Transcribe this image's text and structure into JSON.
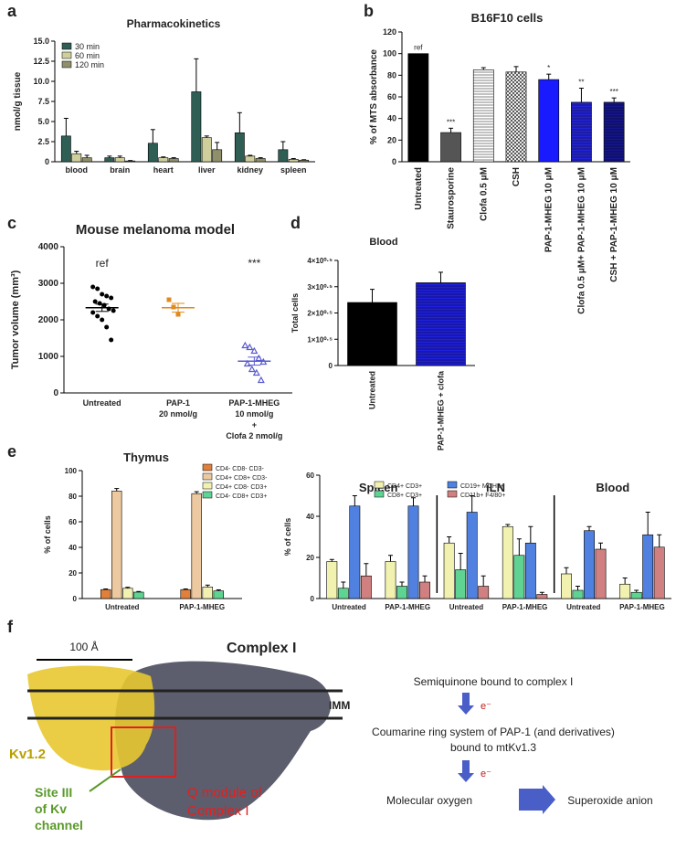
{
  "panel_labels": [
    "a",
    "b",
    "c",
    "d",
    "e",
    "f"
  ],
  "chart_data": [
    {
      "type": "bar",
      "title": "Pharmacokinetics",
      "y_label": "nmol/g tissue",
      "categories": [
        "blood",
        "brain",
        "heart",
        "liver",
        "kidney",
        "spleen"
      ],
      "series": [
        {
          "name": "30  min",
          "color": "#2f5e55",
          "values": [
            3.2,
            0.5,
            2.3,
            8.7,
            3.6,
            1.5
          ],
          "errors": [
            2.2,
            0.2,
            1.7,
            4.1,
            2.5,
            1.0
          ]
        },
        {
          "name": "60 min",
          "color": "#cfcf9e",
          "values": [
            1.0,
            0.5,
            0.5,
            3.0,
            0.7,
            0.3
          ],
          "errors": [
            0.3,
            0.2,
            0.1,
            0.2,
            0.1,
            0.1
          ]
        },
        {
          "name": "120 min",
          "color": "#8f8f6a",
          "values": [
            0.5,
            0.1,
            0.4,
            1.5,
            0.4,
            0.2
          ],
          "errors": [
            0.3,
            0.05,
            0.1,
            0.9,
            0.1,
            0.05
          ]
        }
      ],
      "ylim": [
        0,
        15
      ],
      "yticks": [
        0,
        2.5,
        {
          "value": 5,
          "label": "5.0"
        },
        7.5,
        {
          "value": 10,
          "label": "10.0"
        },
        12.5,
        {
          "value": 15,
          "label": "15.0"
        }
      ],
      "legend": "upper left"
    },
    {
      "type": "bar",
      "title": "B16F10 cells",
      "y_label": "% of MTS absorbance",
      "categories": [
        "Untreated",
        "Staurosporine",
        "Clofa 0.5 μM",
        "CSH",
        "PAP-1-MHEG 10 μM",
        "Clofa 0.5 μM+ PAP-1-MHEG 10 μM",
        "CSH + PAP-1-MHEG 10 μM"
      ],
      "values": [
        100,
        27,
        85,
        83,
        76,
        55,
        55
      ],
      "errors": [
        0,
        4,
        2,
        5,
        5,
        13,
        4
      ],
      "colors": [
        "#000000",
        "#555555",
        "#ffffff",
        "#ffffff",
        "#1a1aff",
        "#2424d8",
        "#16168f"
      ],
      "patterns": [
        null,
        null,
        "horizontal",
        "crosshatch",
        null,
        "horizontal",
        "horizontal"
      ],
      "annotations": [
        "ref",
        "***",
        null,
        null,
        "*",
        "**",
        "***"
      ],
      "ylim": [
        0,
        120
      ],
      "yticks": [
        0,
        20,
        40,
        60,
        80,
        100,
        120
      ]
    },
    {
      "type": "scatter",
      "title": "Mouse melanoma model",
      "y_label": "Tumor volume (mm³)",
      "categories": [
        [
          "Untreated"
        ],
        [
          "PAP-1",
          "20 nmol/g"
        ],
        [
          "PAP-1-MHEG",
          "10 nmol/g",
          "+",
          "Clofa 2 nmol/g"
        ]
      ],
      "series": [
        {
          "color": "#000000",
          "marker": "circle",
          "values": [
            2900,
            2850,
            2700,
            2650,
            2600,
            2500,
            2450,
            2400,
            2300,
            2250,
            2200,
            2100,
            2000,
            1800,
            1450
          ]
        },
        {
          "color": "#e08a1e",
          "marker": "square",
          "values": [
            2550,
            2350,
            2150
          ]
        },
        {
          "color": "#5a5ad0",
          "marker": "triangle",
          "values": [
            1300,
            1250,
            1150,
            950,
            850,
            800,
            650,
            550,
            350
          ]
        }
      ],
      "means": [
        2330,
        2330,
        870
      ],
      "sems": [
        100,
        120,
        110
      ],
      "annotations": [
        "ref",
        null,
        "***"
      ],
      "ylim": [
        0,
        4000
      ],
      "yticks": [
        0,
        1000,
        2000,
        3000,
        4000
      ]
    },
    {
      "type": "bar",
      "title": "Blood",
      "y_label": "Total cells",
      "categories": [
        "Untreated",
        "PAP-1-MHEG + clofa"
      ],
      "values": [
        240000,
        315000
      ],
      "errors": [
        50000,
        40000
      ],
      "colors": [
        "#000000",
        "#2020e0"
      ],
      "patterns": [
        null,
        "horizontal"
      ],
      "ylim": [
        0,
        400000
      ],
      "yticks": [
        0,
        {
          "value": 100000,
          "label": "1×10⁰·⁵"
        },
        {
          "value": 200000,
          "label": "2×10⁰·⁵"
        },
        {
          "value": 300000,
          "label": "3×10⁰·⁵"
        },
        {
          "value": 400000,
          "label": "4×10⁰·⁵"
        }
      ]
    },
    {
      "type": "bar",
      "title": "Thymus",
      "y_label": "% of cells",
      "categories": [
        "Untreated",
        "PAP-1-MHEG"
      ],
      "series": [
        {
          "name": "CD4- CD8- CD3-",
          "color": "#e0803c",
          "values": [
            7,
            7
          ],
          "errors": [
            0.5,
            0.5
          ]
        },
        {
          "name": "CD4+ CD8+ CD3-",
          "color": "#ecc9a0",
          "values": [
            84,
            82
          ],
          "errors": [
            2,
            1.5
          ]
        },
        {
          "name": "CD4+ CD8- CD3+",
          "color": "#f2f2b0",
          "values": [
            8,
            9
          ],
          "errors": [
            0.8,
            1.5
          ]
        },
        {
          "name": "CD4- CD8+ CD3+",
          "color": "#5ed392",
          "values": [
            5,
            6
          ],
          "errors": [
            0.5,
            0.8
          ]
        }
      ],
      "ylim": [
        0,
        100
      ],
      "yticks": [
        0,
        20,
        40,
        60,
        80,
        100
      ],
      "legend": "right"
    },
    {
      "type": "bar",
      "y_label": "% of cells",
      "group_labels": [
        "Spleen",
        "iLN",
        "Blood"
      ],
      "categories": [
        "Untreated",
        "PAP-1-MHEG",
        "Untreated",
        "PAP-1-MHEG",
        "Untreated",
        "PAP-1-MHEG"
      ],
      "series": [
        {
          "name": "CD4+ CD3+",
          "color": "#f2f2b0",
          "values": [
            18,
            18,
            27,
            35,
            12,
            7
          ],
          "errors": [
            1,
            3,
            3,
            1,
            3,
            3
          ]
        },
        {
          "name": "CD8+ CD3+",
          "color": "#5ed392",
          "values": [
            5,
            6,
            14,
            21,
            4,
            3
          ],
          "errors": [
            3,
            2,
            8,
            8,
            2,
            1
          ]
        },
        {
          "name": "CD19+ MCHII+",
          "color": "#5080e0",
          "values": [
            45,
            45,
            42,
            27,
            33,
            31
          ],
          "errors": [
            5,
            4,
            8,
            8,
            2,
            11
          ]
        },
        {
          "name": "CD11b+ F4/80+",
          "color": "#d08080",
          "values": [
            11,
            8,
            6,
            2,
            24,
            25
          ],
          "errors": [
            6,
            3,
            5,
            1,
            3,
            6
          ]
        }
      ],
      "ylim": [
        0,
        60
      ],
      "yticks": [
        0,
        20,
        40,
        60
      ],
      "legend": "top"
    }
  ],
  "diagram": {
    "scale": "100 Å",
    "complex": "Complex I",
    "membrane": "IMM",
    "channel": "Kv1.2",
    "site": [
      "Site III",
      "of Kv",
      "channel"
    ],
    "q_module": [
      "Q module of",
      "Complex I"
    ],
    "steps": [
      "Semiquinone bound to complex I",
      "e⁻",
      "Coumarine ring system of PAP-1 (and derivatives)",
      "bound to mtKv1.3",
      "e⁻",
      "Molecular oxygen",
      "Superoxide anion"
    ]
  }
}
